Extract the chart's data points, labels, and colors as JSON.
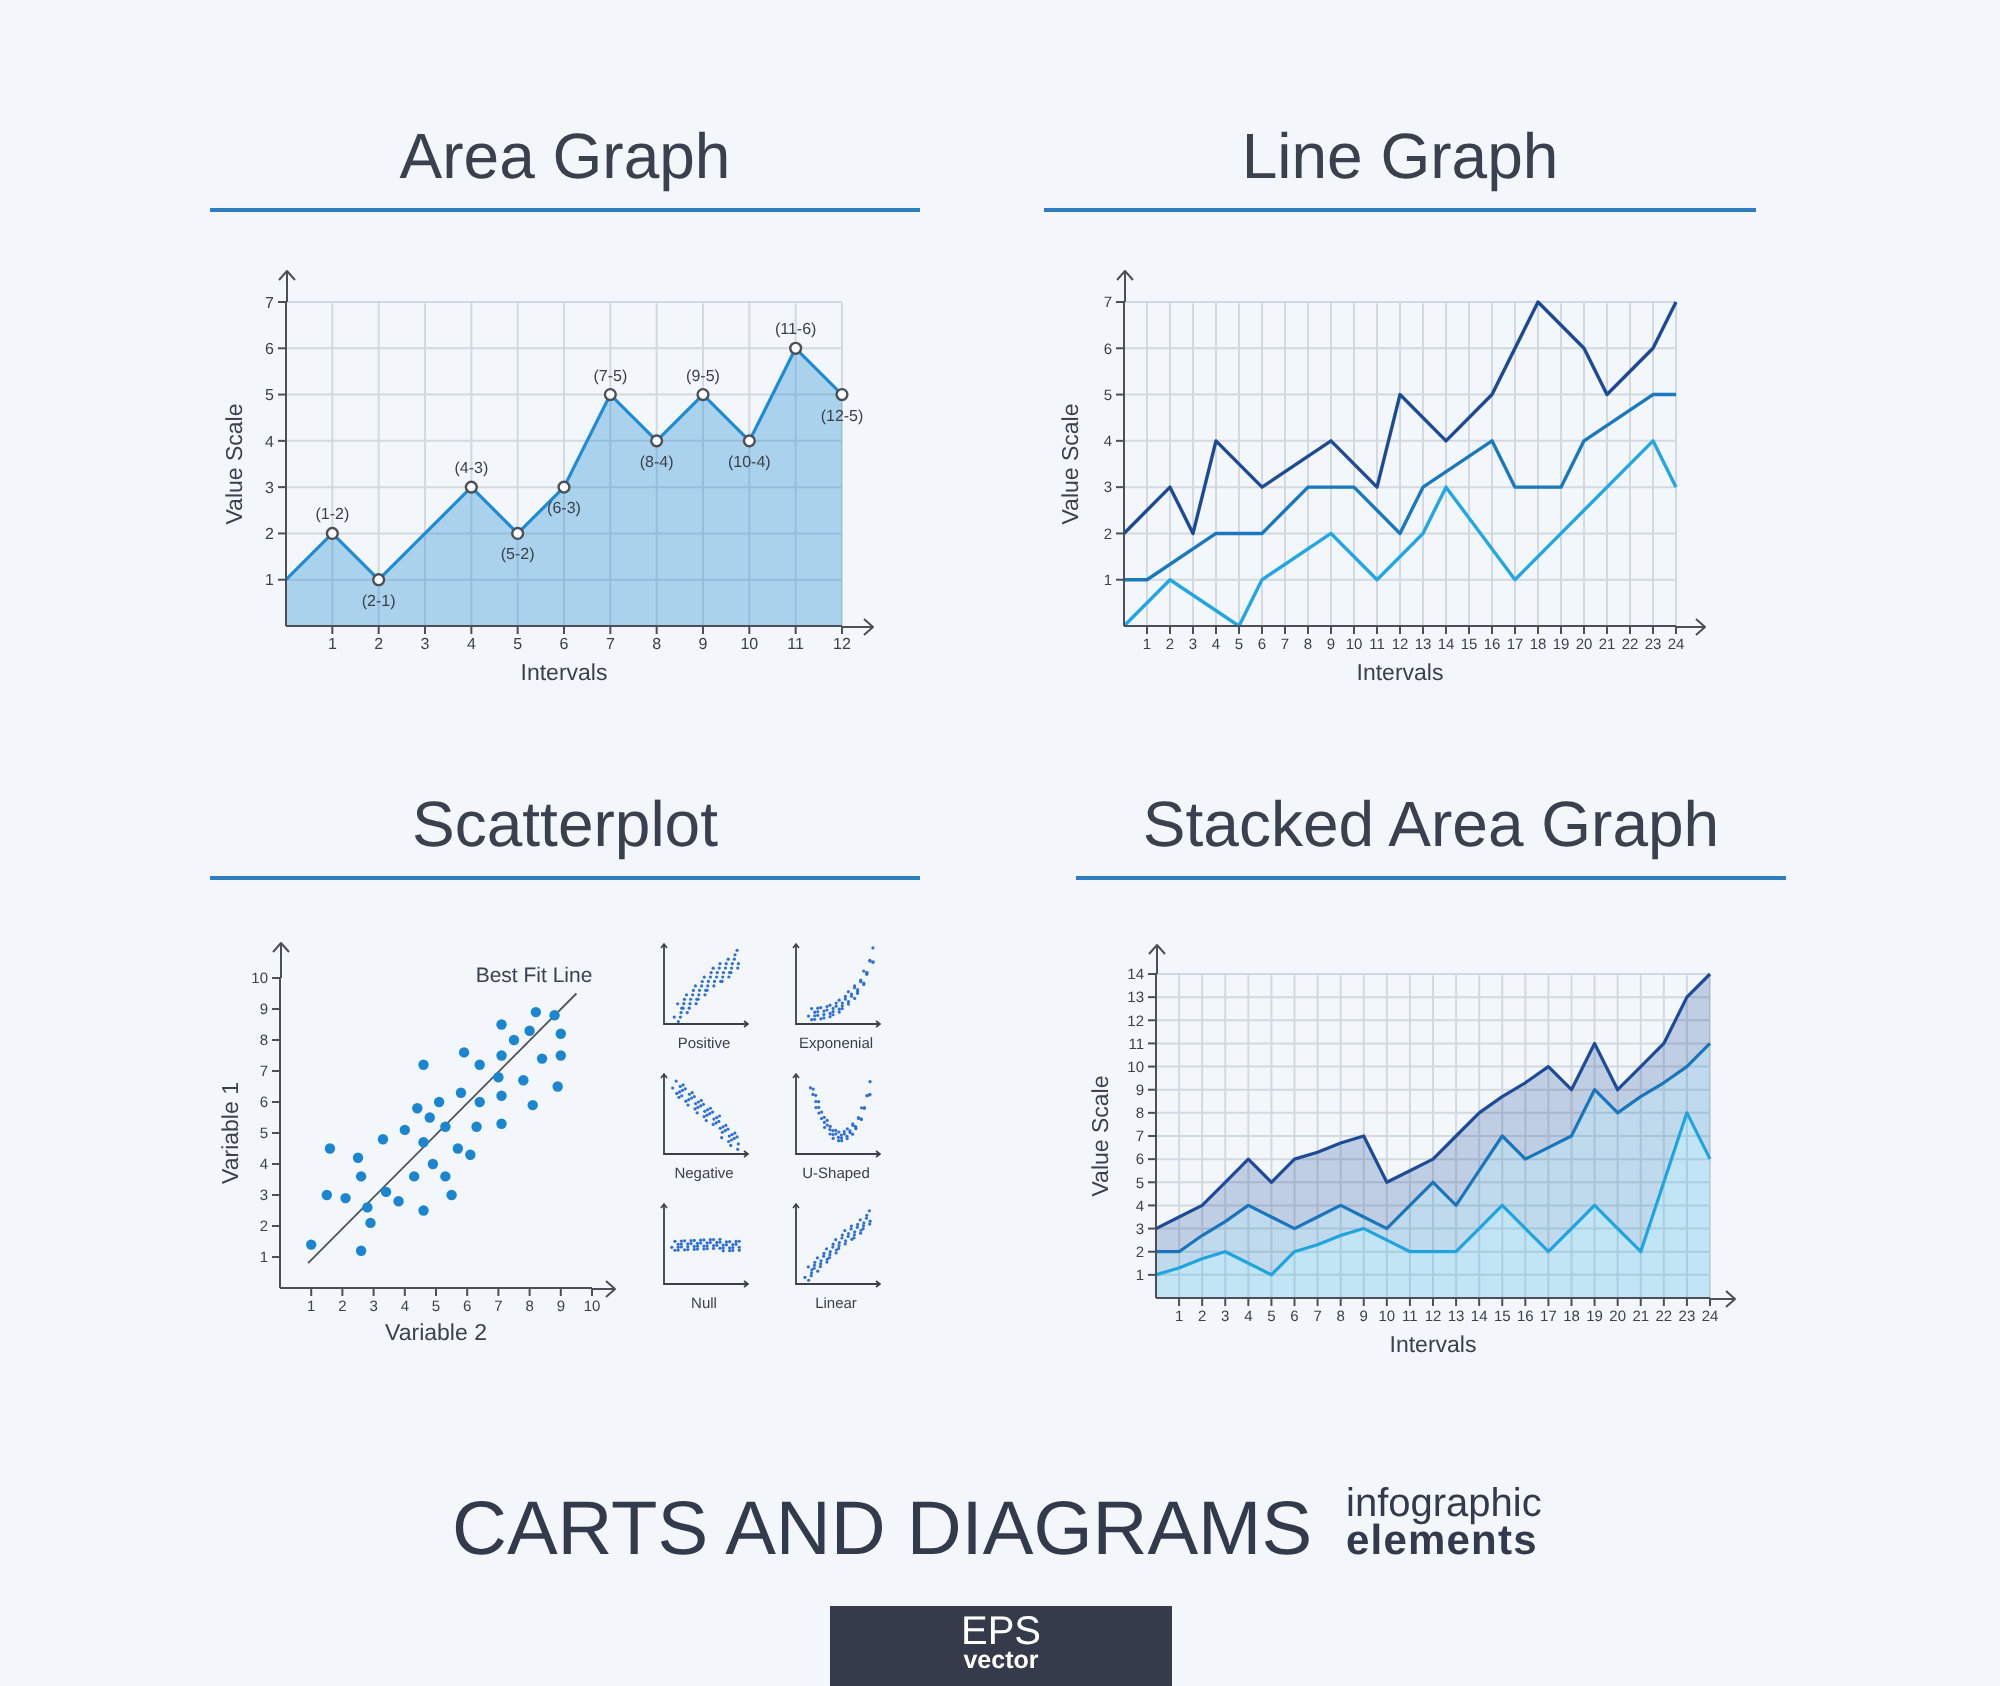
{
  "chart_data": [
    {
      "type": "area",
      "title": "Area Graph",
      "xlabel": "Intervals",
      "ylabel": "Value Scale",
      "x": [
        0,
        1,
        2,
        4,
        5,
        6,
        7,
        8,
        9,
        10,
        11,
        12
      ],
      "values": [
        1,
        2,
        1,
        3,
        2,
        3,
        5,
        4,
        5,
        4,
        6,
        5
      ],
      "value_labels": [
        null,
        "(1-2)",
        "(2-1)",
        "(4-3)",
        "(5-2)",
        "(6-3)",
        "(7-5)",
        "(8-4)",
        "(9-5)",
        "(10-4)",
        "(11-6)",
        "(12-5)"
      ],
      "color": "#1f8bd3",
      "marker": "circle",
      "xlim": [
        0,
        12
      ],
      "xticks": [
        1,
        2,
        3,
        4,
        5,
        6,
        7,
        8,
        9,
        10,
        11,
        12
      ],
      "ylim": [
        0,
        7
      ],
      "yticks": [
        1,
        2,
        3,
        4,
        5,
        6,
        7
      ],
      "grid": true
    },
    {
      "type": "line",
      "title": "Line Graph",
      "xlabel": "Intervals",
      "ylabel": "Value Scale",
      "series": [
        {
          "color": "#1c4a94",
          "x": [
            0,
            2,
            3,
            4,
            6,
            9,
            11,
            12,
            14,
            16,
            18,
            20,
            21,
            23,
            24
          ],
          "values": [
            2,
            3,
            2,
            4,
            3,
            4,
            3,
            5,
            4,
            5,
            7,
            6,
            5,
            6,
            7
          ]
        },
        {
          "color": "#1a78be",
          "x": [
            0,
            1,
            4,
            6,
            8,
            10,
            12,
            13,
            16,
            17,
            19,
            20,
            23,
            24
          ],
          "values": [
            1,
            1,
            2,
            2,
            3,
            3,
            2,
            3,
            4,
            3,
            3,
            4,
            5,
            5
          ]
        },
        {
          "color": "#23a7e2",
          "x": [
            0,
            2,
            5,
            6,
            9,
            11,
            13,
            14,
            17,
            23,
            24
          ],
          "values": [
            0,
            1,
            0,
            1,
            2,
            1,
            2,
            3,
            1,
            4,
            3
          ]
        }
      ],
      "xlim": [
        0,
        24
      ],
      "xticks": [
        1,
        2,
        3,
        4,
        5,
        6,
        7,
        8,
        9,
        10,
        11,
        12,
        13,
        14,
        15,
        16,
        17,
        18,
        19,
        20,
        21,
        22,
        23,
        24
      ],
      "ylim": [
        0,
        7
      ],
      "yticks": [
        1,
        2,
        3,
        4,
        5,
        6,
        7
      ],
      "grid": true
    },
    {
      "type": "scatter",
      "title": "Scatterplot",
      "xlabel": "Variable 2",
      "ylabel": "Variable 1",
      "series": [
        {
          "color": "#1b86d0",
          "marker": "circle",
          "x": [
            1.0,
            1.5,
            1.6,
            2.1,
            2.5,
            2.6,
            2.6,
            2.8,
            2.9,
            3.3,
            3.4,
            3.8,
            4.0,
            4.3,
            4.4,
            4.6,
            4.6,
            4.6,
            4.8,
            4.9,
            5.1,
            5.3,
            5.3,
            5.5,
            5.7,
            5.8,
            5.9,
            6.1,
            6.3,
            6.4,
            6.4,
            7.1,
            7.0,
            7.1,
            7.1,
            7.1,
            7.5,
            7.8,
            8.0,
            8.1,
            8.2,
            8.4,
            8.8,
            9.0,
            9.0,
            8.9
          ],
          "values": [
            1.4,
            3.0,
            4.5,
            2.9,
            4.2,
            3.6,
            1.2,
            2.6,
            2.1,
            4.8,
            3.1,
            2.8,
            5.1,
            3.6,
            5.8,
            2.5,
            4.7,
            7.2,
            5.5,
            4.0,
            6.0,
            3.6,
            5.2,
            3.0,
            4.5,
            6.3,
            7.6,
            4.3,
            5.2,
            6.0,
            7.2,
            5.3,
            6.8,
            6.2,
            7.5,
            8.5,
            8.0,
            6.7,
            8.3,
            5.9,
            8.9,
            7.4,
            8.8,
            8.2,
            7.5,
            6.5
          ]
        },
        {
          "type": "line",
          "name": "Best Fit Line",
          "color": "#4d535c",
          "x": [
            0.9,
            9.5
          ],
          "values": [
            0.8,
            9.5
          ]
        }
      ],
      "xlim": [
        0,
        10
      ],
      "xticks": [
        1,
        2,
        3,
        4,
        5,
        6,
        7,
        8,
        9,
        10
      ],
      "ylim": [
        0,
        10
      ],
      "yticks": [
        1,
        2,
        3,
        4,
        5,
        6,
        7,
        8,
        9,
        10
      ],
      "annotations": [
        "Positive",
        "Exponenial",
        "Negative",
        "U-Shaped",
        "Null",
        "Linear"
      ]
    },
    {
      "type": "area",
      "stacked": true,
      "title": "Stacked Area Graph",
      "xlabel": "Intervals",
      "ylabel": "Value Scale",
      "x": [
        0,
        1,
        2,
        3,
        4,
        5,
        6,
        7,
        8,
        9,
        10,
        11,
        12,
        13,
        14,
        15,
        16,
        17,
        18,
        19,
        20,
        21,
        22,
        23,
        24
      ],
      "series": [
        {
          "color": "#22aae2",
          "values": [
            1,
            1.3,
            1.7,
            2,
            1.5,
            1,
            2,
            2.3,
            2.7,
            3,
            2.5,
            2,
            2,
            2,
            3,
            4,
            3,
            2,
            3,
            4,
            3,
            2,
            5,
            8,
            6
          ]
        },
        {
          "color": "#1a7cc1",
          "values": [
            1,
            0.7,
            1,
            1.3,
            2.5,
            2.5,
            1,
            1.2,
            1.3,
            0.5,
            0.5,
            2,
            3,
            2,
            2.5,
            3,
            3,
            4.5,
            4,
            5,
            5,
            6.7,
            4.3,
            2,
            5
          ]
        },
        {
          "color": "#1e4b98",
          "values": [
            1,
            1.5,
            1.3,
            1.7,
            2,
            1.5,
            3,
            2.8,
            2.7,
            3.5,
            2,
            1.5,
            1,
            3,
            2.5,
            1.7,
            3.3,
            3.5,
            2,
            2,
            1,
            1.3,
            1.7,
            3,
            3
          ]
        }
      ],
      "xlim": [
        0,
        24
      ],
      "xticks": [
        1,
        2,
        3,
        4,
        5,
        6,
        7,
        8,
        9,
        10,
        11,
        12,
        13,
        14,
        15,
        16,
        17,
        18,
        19,
        20,
        21,
        22,
        23,
        24
      ],
      "ylim": [
        0,
        14
      ],
      "yticks": [
        1,
        2,
        3,
        4,
        5,
        6,
        7,
        8,
        9,
        10,
        11,
        12,
        13,
        14
      ],
      "grid": true
    },
    {
      "type": "other",
      "title": "CARTS AND DIAGRAMS",
      "annotations": [
        "infographic",
        "elements",
        "EPS",
        "vector"
      ]
    }
  ]
}
